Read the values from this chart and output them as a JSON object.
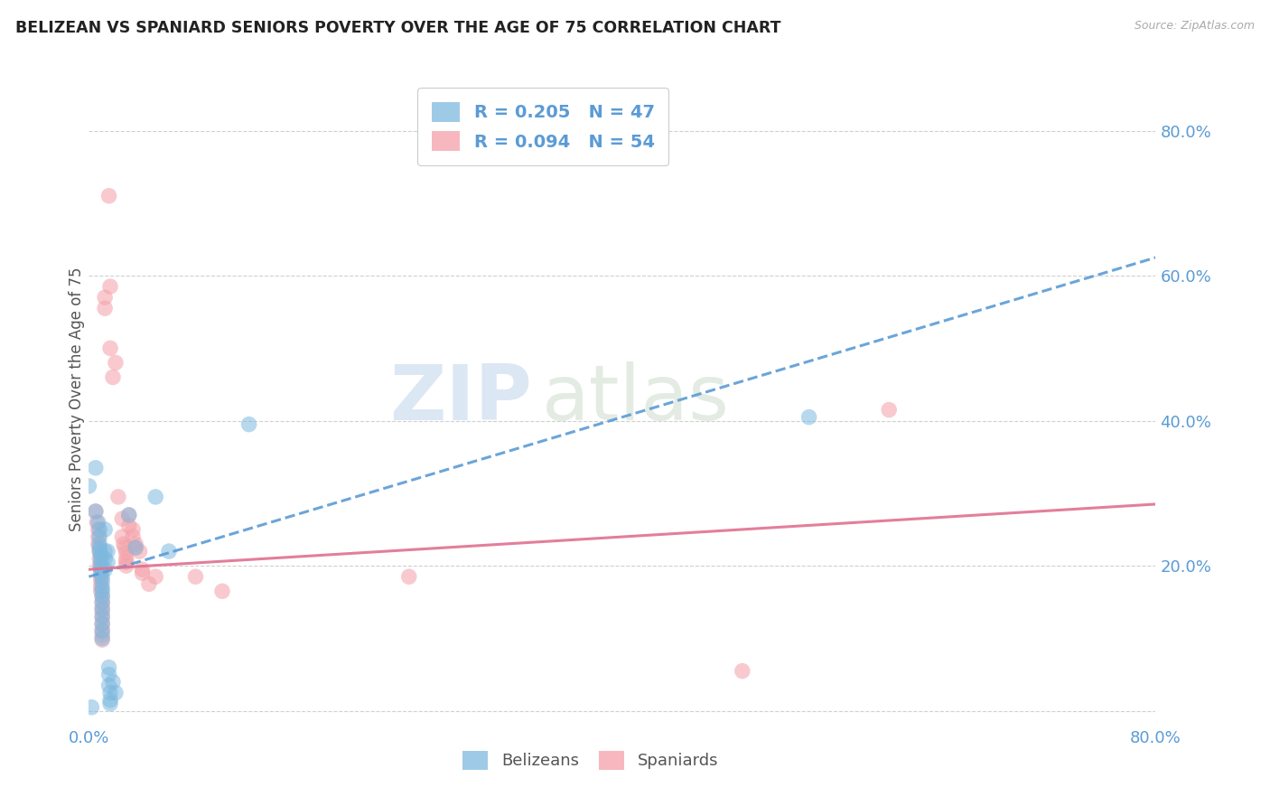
{
  "title": "BELIZEAN VS SPANIARD SENIORS POVERTY OVER THE AGE OF 75 CORRELATION CHART",
  "source": "Source: ZipAtlas.com",
  "ylabel": "Seniors Poverty Over the Age of 75",
  "xlim": [
    0.0,
    0.8
  ],
  "ylim": [
    -0.02,
    0.88
  ],
  "ytick_positions": [
    0.0,
    0.2,
    0.4,
    0.6,
    0.8
  ],
  "blue_R": "R = 0.205",
  "blue_N": "N = 47",
  "pink_R": "R = 0.094",
  "pink_N": "N = 54",
  "blue_color": "#7fb9e0",
  "pink_color": "#f4a0a8",
  "blue_scatter": [
    [
      0.005,
      0.335
    ],
    [
      0.005,
      0.275
    ],
    [
      0.007,
      0.26
    ],
    [
      0.008,
      0.25
    ],
    [
      0.008,
      0.24
    ],
    [
      0.008,
      0.23
    ],
    [
      0.008,
      0.225
    ],
    [
      0.008,
      0.22
    ],
    [
      0.009,
      0.215
    ],
    [
      0.009,
      0.21
    ],
    [
      0.009,
      0.205
    ],
    [
      0.009,
      0.2
    ],
    [
      0.009,
      0.195
    ],
    [
      0.009,
      0.19
    ],
    [
      0.01,
      0.185
    ],
    [
      0.01,
      0.178
    ],
    [
      0.01,
      0.17
    ],
    [
      0.01,
      0.165
    ],
    [
      0.01,
      0.158
    ],
    [
      0.01,
      0.15
    ],
    [
      0.01,
      0.14
    ],
    [
      0.01,
      0.13
    ],
    [
      0.01,
      0.12
    ],
    [
      0.01,
      0.11
    ],
    [
      0.01,
      0.1
    ],
    [
      0.012,
      0.25
    ],
    [
      0.012,
      0.22
    ],
    [
      0.012,
      0.21
    ],
    [
      0.012,
      0.195
    ],
    [
      0.014,
      0.22
    ],
    [
      0.014,
      0.205
    ],
    [
      0.015,
      0.06
    ],
    [
      0.015,
      0.05
    ],
    [
      0.015,
      0.035
    ],
    [
      0.016,
      0.025
    ],
    [
      0.016,
      0.015
    ],
    [
      0.016,
      0.01
    ],
    [
      0.018,
      0.04
    ],
    [
      0.02,
      0.025
    ],
    [
      0.03,
      0.27
    ],
    [
      0.035,
      0.225
    ],
    [
      0.05,
      0.295
    ],
    [
      0.06,
      0.22
    ],
    [
      0.12,
      0.395
    ],
    [
      0.54,
      0.405
    ],
    [
      0.0,
      0.31
    ],
    [
      0.002,
      0.005
    ]
  ],
  "pink_scatter": [
    [
      0.005,
      0.275
    ],
    [
      0.006,
      0.26
    ],
    [
      0.007,
      0.25
    ],
    [
      0.007,
      0.24
    ],
    [
      0.007,
      0.23
    ],
    [
      0.008,
      0.22
    ],
    [
      0.008,
      0.21
    ],
    [
      0.008,
      0.2
    ],
    [
      0.009,
      0.195
    ],
    [
      0.009,
      0.185
    ],
    [
      0.009,
      0.18
    ],
    [
      0.009,
      0.172
    ],
    [
      0.009,
      0.165
    ],
    [
      0.01,
      0.158
    ],
    [
      0.01,
      0.15
    ],
    [
      0.01,
      0.143
    ],
    [
      0.01,
      0.136
    ],
    [
      0.01,
      0.128
    ],
    [
      0.01,
      0.12
    ],
    [
      0.01,
      0.112
    ],
    [
      0.01,
      0.105
    ],
    [
      0.01,
      0.098
    ],
    [
      0.012,
      0.57
    ],
    [
      0.012,
      0.555
    ],
    [
      0.015,
      0.71
    ],
    [
      0.016,
      0.585
    ],
    [
      0.016,
      0.5
    ],
    [
      0.018,
      0.46
    ],
    [
      0.02,
      0.48
    ],
    [
      0.022,
      0.295
    ],
    [
      0.025,
      0.265
    ],
    [
      0.025,
      0.24
    ],
    [
      0.026,
      0.23
    ],
    [
      0.027,
      0.225
    ],
    [
      0.028,
      0.218
    ],
    [
      0.028,
      0.21
    ],
    [
      0.028,
      0.205
    ],
    [
      0.028,
      0.2
    ],
    [
      0.03,
      0.27
    ],
    [
      0.03,
      0.255
    ],
    [
      0.033,
      0.25
    ],
    [
      0.033,
      0.24
    ],
    [
      0.035,
      0.23
    ],
    [
      0.035,
      0.225
    ],
    [
      0.038,
      0.22
    ],
    [
      0.04,
      0.195
    ],
    [
      0.04,
      0.19
    ],
    [
      0.045,
      0.175
    ],
    [
      0.05,
      0.185
    ],
    [
      0.08,
      0.185
    ],
    [
      0.1,
      0.165
    ],
    [
      0.24,
      0.185
    ],
    [
      0.49,
      0.055
    ],
    [
      0.6,
      0.415
    ]
  ],
  "blue_trend_x": [
    0.0,
    0.8
  ],
  "blue_trend_y": [
    0.185,
    0.625
  ],
  "pink_trend_x": [
    0.0,
    0.8
  ],
  "pink_trend_y": [
    0.195,
    0.285
  ],
  "watermark_zip": "ZIP",
  "watermark_atlas": "atlas",
  "background_color": "#ffffff",
  "grid_color": "#d0d0d0",
  "title_color": "#222222",
  "axis_label_color": "#5b9bd5",
  "legend_text_color": "#5b9bd5",
  "figsize": [
    14.06,
    8.92
  ],
  "dpi": 100
}
